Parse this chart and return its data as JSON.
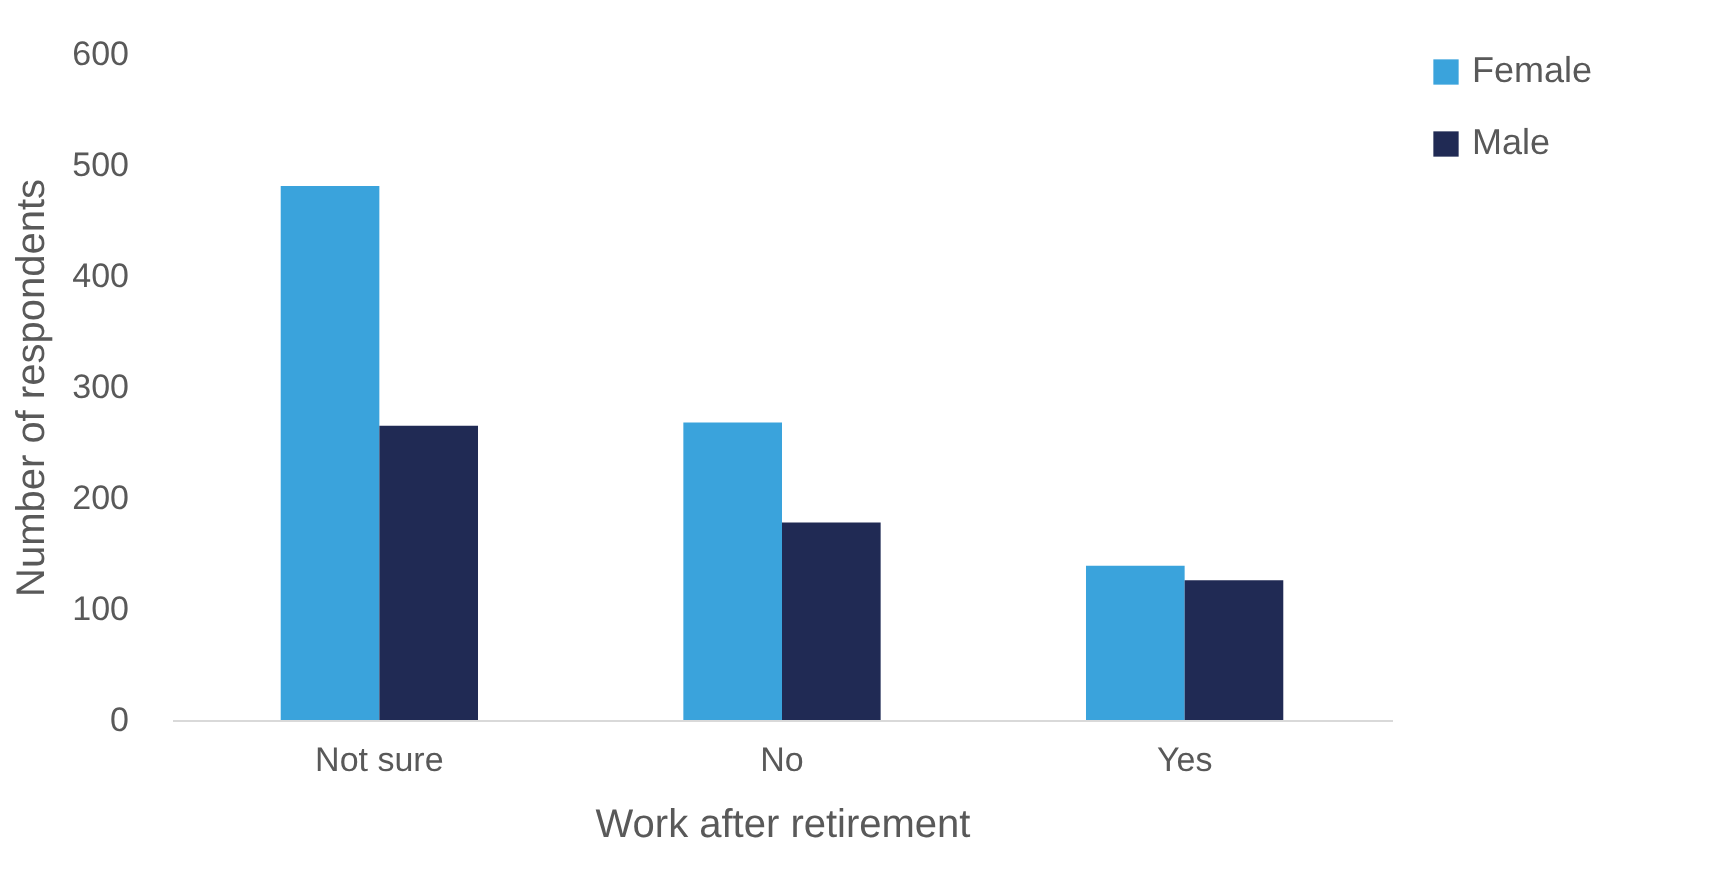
{
  "chart_data": {
    "type": "bar",
    "xlabel": "Work after retirement",
    "ylabel": "Number of respondents",
    "categories": [
      "Not sure",
      "No",
      "Yes"
    ],
    "series": [
      {
        "name": "Female",
        "color": "#3aa3dc",
        "values": [
          481,
          268,
          139
        ]
      },
      {
        "name": "Male",
        "color": "#202a54",
        "values": [
          265,
          178,
          126
        ]
      }
    ],
    "ylim": [
      0,
      600
    ],
    "yticks": [
      0,
      100,
      200,
      300,
      400,
      500,
      600
    ],
    "grid": false,
    "legend": "right"
  }
}
